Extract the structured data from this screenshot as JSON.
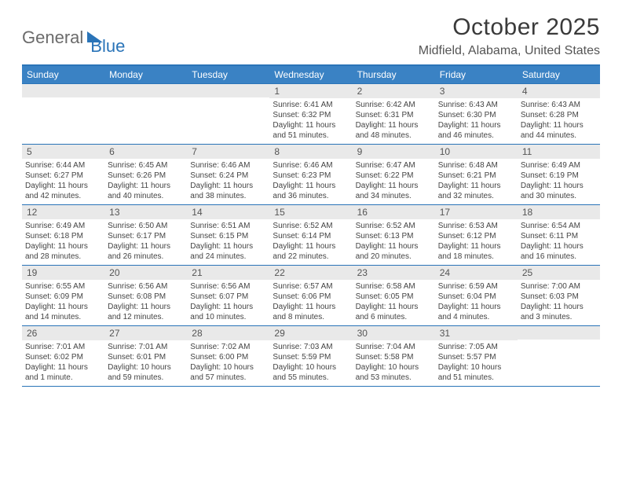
{
  "brand": {
    "part1": "General",
    "part2": "Blue"
  },
  "title": "October 2025",
  "location": "Midfield, Alabama, United States",
  "colors": {
    "header_bg": "#3a82c4",
    "header_border": "#2a74b8",
    "daynum_bg": "#e9e9e9",
    "text": "#3a3a3a",
    "brand_blue": "#2a74b8",
    "brand_gray": "#6b6b6b"
  },
  "day_headers": [
    "Sunday",
    "Monday",
    "Tuesday",
    "Wednesday",
    "Thursday",
    "Friday",
    "Saturday"
  ],
  "weeks": [
    [
      {
        "n": "",
        "lines": []
      },
      {
        "n": "",
        "lines": []
      },
      {
        "n": "",
        "lines": []
      },
      {
        "n": "1",
        "lines": [
          "Sunrise: 6:41 AM",
          "Sunset: 6:32 PM",
          "Daylight: 11 hours and 51 minutes."
        ]
      },
      {
        "n": "2",
        "lines": [
          "Sunrise: 6:42 AM",
          "Sunset: 6:31 PM",
          "Daylight: 11 hours and 48 minutes."
        ]
      },
      {
        "n": "3",
        "lines": [
          "Sunrise: 6:43 AM",
          "Sunset: 6:30 PM",
          "Daylight: 11 hours and 46 minutes."
        ]
      },
      {
        "n": "4",
        "lines": [
          "Sunrise: 6:43 AM",
          "Sunset: 6:28 PM",
          "Daylight: 11 hours and 44 minutes."
        ]
      }
    ],
    [
      {
        "n": "5",
        "lines": [
          "Sunrise: 6:44 AM",
          "Sunset: 6:27 PM",
          "Daylight: 11 hours and 42 minutes."
        ]
      },
      {
        "n": "6",
        "lines": [
          "Sunrise: 6:45 AM",
          "Sunset: 6:26 PM",
          "Daylight: 11 hours and 40 minutes."
        ]
      },
      {
        "n": "7",
        "lines": [
          "Sunrise: 6:46 AM",
          "Sunset: 6:24 PM",
          "Daylight: 11 hours and 38 minutes."
        ]
      },
      {
        "n": "8",
        "lines": [
          "Sunrise: 6:46 AM",
          "Sunset: 6:23 PM",
          "Daylight: 11 hours and 36 minutes."
        ]
      },
      {
        "n": "9",
        "lines": [
          "Sunrise: 6:47 AM",
          "Sunset: 6:22 PM",
          "Daylight: 11 hours and 34 minutes."
        ]
      },
      {
        "n": "10",
        "lines": [
          "Sunrise: 6:48 AM",
          "Sunset: 6:21 PM",
          "Daylight: 11 hours and 32 minutes."
        ]
      },
      {
        "n": "11",
        "lines": [
          "Sunrise: 6:49 AM",
          "Sunset: 6:19 PM",
          "Daylight: 11 hours and 30 minutes."
        ]
      }
    ],
    [
      {
        "n": "12",
        "lines": [
          "Sunrise: 6:49 AM",
          "Sunset: 6:18 PM",
          "Daylight: 11 hours and 28 minutes."
        ]
      },
      {
        "n": "13",
        "lines": [
          "Sunrise: 6:50 AM",
          "Sunset: 6:17 PM",
          "Daylight: 11 hours and 26 minutes."
        ]
      },
      {
        "n": "14",
        "lines": [
          "Sunrise: 6:51 AM",
          "Sunset: 6:15 PM",
          "Daylight: 11 hours and 24 minutes."
        ]
      },
      {
        "n": "15",
        "lines": [
          "Sunrise: 6:52 AM",
          "Sunset: 6:14 PM",
          "Daylight: 11 hours and 22 minutes."
        ]
      },
      {
        "n": "16",
        "lines": [
          "Sunrise: 6:52 AM",
          "Sunset: 6:13 PM",
          "Daylight: 11 hours and 20 minutes."
        ]
      },
      {
        "n": "17",
        "lines": [
          "Sunrise: 6:53 AM",
          "Sunset: 6:12 PM",
          "Daylight: 11 hours and 18 minutes."
        ]
      },
      {
        "n": "18",
        "lines": [
          "Sunrise: 6:54 AM",
          "Sunset: 6:11 PM",
          "Daylight: 11 hours and 16 minutes."
        ]
      }
    ],
    [
      {
        "n": "19",
        "lines": [
          "Sunrise: 6:55 AM",
          "Sunset: 6:09 PM",
          "Daylight: 11 hours and 14 minutes."
        ]
      },
      {
        "n": "20",
        "lines": [
          "Sunrise: 6:56 AM",
          "Sunset: 6:08 PM",
          "Daylight: 11 hours and 12 minutes."
        ]
      },
      {
        "n": "21",
        "lines": [
          "Sunrise: 6:56 AM",
          "Sunset: 6:07 PM",
          "Daylight: 11 hours and 10 minutes."
        ]
      },
      {
        "n": "22",
        "lines": [
          "Sunrise: 6:57 AM",
          "Sunset: 6:06 PM",
          "Daylight: 11 hours and 8 minutes."
        ]
      },
      {
        "n": "23",
        "lines": [
          "Sunrise: 6:58 AM",
          "Sunset: 6:05 PM",
          "Daylight: 11 hours and 6 minutes."
        ]
      },
      {
        "n": "24",
        "lines": [
          "Sunrise: 6:59 AM",
          "Sunset: 6:04 PM",
          "Daylight: 11 hours and 4 minutes."
        ]
      },
      {
        "n": "25",
        "lines": [
          "Sunrise: 7:00 AM",
          "Sunset: 6:03 PM",
          "Daylight: 11 hours and 3 minutes."
        ]
      }
    ],
    [
      {
        "n": "26",
        "lines": [
          "Sunrise: 7:01 AM",
          "Sunset: 6:02 PM",
          "Daylight: 11 hours and 1 minute."
        ]
      },
      {
        "n": "27",
        "lines": [
          "Sunrise: 7:01 AM",
          "Sunset: 6:01 PM",
          "Daylight: 10 hours and 59 minutes."
        ]
      },
      {
        "n": "28",
        "lines": [
          "Sunrise: 7:02 AM",
          "Sunset: 6:00 PM",
          "Daylight: 10 hours and 57 minutes."
        ]
      },
      {
        "n": "29",
        "lines": [
          "Sunrise: 7:03 AM",
          "Sunset: 5:59 PM",
          "Daylight: 10 hours and 55 minutes."
        ]
      },
      {
        "n": "30",
        "lines": [
          "Sunrise: 7:04 AM",
          "Sunset: 5:58 PM",
          "Daylight: 10 hours and 53 minutes."
        ]
      },
      {
        "n": "31",
        "lines": [
          "Sunrise: 7:05 AM",
          "Sunset: 5:57 PM",
          "Daylight: 10 hours and 51 minutes."
        ]
      },
      {
        "n": "",
        "lines": []
      }
    ]
  ]
}
